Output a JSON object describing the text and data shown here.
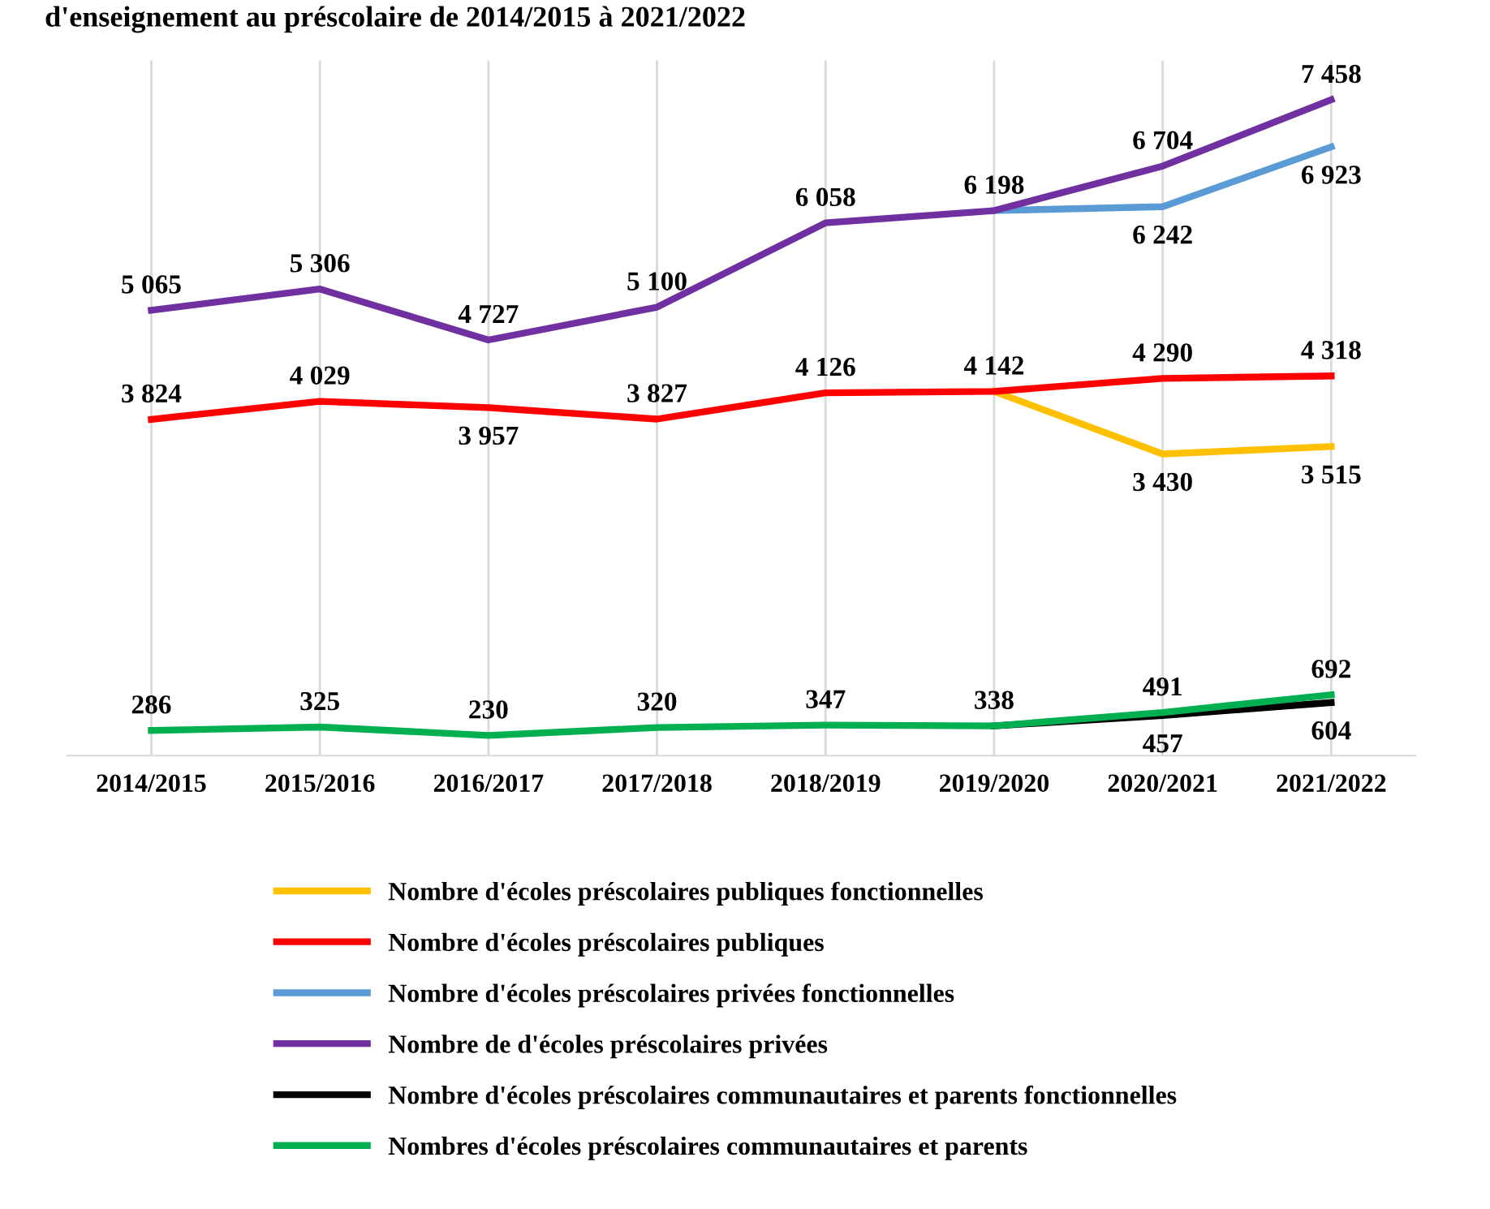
{
  "chart_data": {
    "type": "line",
    "title": "d'enseignement au préscolaire de 2014/2015 à 2021/2022",
    "categories": [
      "2014/2015",
      "2015/2016",
      "2016/2017",
      "2017/2018",
      "2018/2019",
      "2019/2020",
      "2020/2021",
      "2021/2022"
    ],
    "series": [
      {
        "name": "Nombre d'écoles préscolaires publiques fonctionnelles",
        "color": "#ffc000",
        "values": [
          null,
          null,
          null,
          null,
          null,
          4142,
          3430,
          3515
        ],
        "value_labels": [
          null,
          null,
          null,
          null,
          null,
          null,
          "3 430",
          "3 515"
        ]
      },
      {
        "name": "Nombre d'écoles préscolaires publiques",
        "color": "#ff0000",
        "values": [
          3824,
          4029,
          3957,
          3827,
          4126,
          4142,
          4290,
          4318
        ],
        "value_labels": [
          "3 824",
          "4 029",
          "3 957",
          "3 827",
          "4 126",
          "4 142",
          "4 290",
          "4 318"
        ]
      },
      {
        "name": "Nombre d'écoles préscolaires privées fonctionnelles",
        "color": "#5b9bd5",
        "values": [
          null,
          null,
          null,
          null,
          null,
          6198,
          6242,
          6923
        ],
        "value_labels": [
          null,
          null,
          null,
          null,
          null,
          null,
          "6 242",
          "6 923"
        ]
      },
      {
        "name": "Nombre de d'écoles préscolaires privées",
        "color": "#7030a0",
        "values": [
          5065,
          5306,
          4727,
          5100,
          6058,
          6198,
          6704,
          7458
        ],
        "value_labels": [
          "5 065",
          "5 306",
          "4 727",
          "5 100",
          "6 058",
          "6 198",
          "6 704",
          "7 458"
        ]
      },
      {
        "name": "Nombre d'écoles préscolaires communautaires et parents fonctionnelles",
        "color": "#000000",
        "values": [
          null,
          null,
          null,
          null,
          null,
          338,
          457,
          604
        ],
        "value_labels": [
          null,
          null,
          null,
          null,
          null,
          null,
          "457",
          "604"
        ]
      },
      {
        "name": "Nombres d'écoles préscolaires communautaires et parents",
        "color": "#00b050",
        "values": [
          286,
          325,
          230,
          320,
          347,
          338,
          491,
          692
        ],
        "value_labels": [
          "286",
          "325",
          "230",
          "320",
          "347",
          "338",
          "491",
          "692"
        ]
      }
    ],
    "grid": "x",
    "legend": "bottom"
  }
}
